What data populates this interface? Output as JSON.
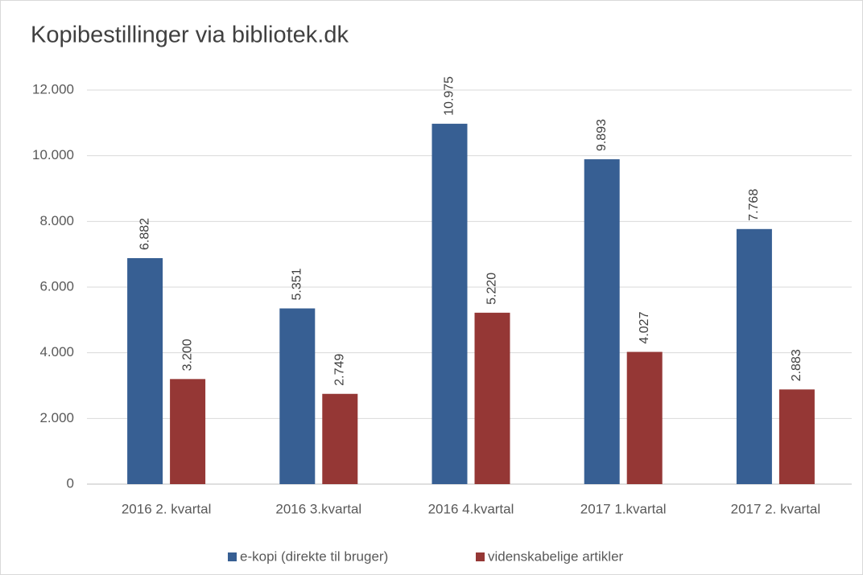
{
  "chart_data": {
    "type": "bar",
    "title": "Kopibestillinger via bibliotek.dk",
    "categories": [
      "2016 2. kvartal",
      "2016 3.kvartal",
      "2016 4.kvartal",
      "2017 1.kvartal",
      "2017 2. kvartal"
    ],
    "series": [
      {
        "name": "e-kopi (direkte til bruger)",
        "color": "#375f93",
        "values": [
          6882,
          5351,
          10975,
          9893,
          7768
        ],
        "value_labels": [
          "6.882",
          "5.351",
          "10.975",
          "9.893",
          "7.768"
        ]
      },
      {
        "name": "videnskabelige artikler",
        "color": "#953735",
        "values": [
          3200,
          2749,
          5220,
          4027,
          2883
        ],
        "value_labels": [
          "3.200",
          "2.749",
          "5.220",
          "4.027",
          "2.883"
        ]
      }
    ],
    "ylim": [
      0,
      12000
    ],
    "yticks": [
      0,
      {
        "value": 2000,
        "label": "2.000"
      },
      {
        "value": 4000,
        "label": "4.000"
      },
      {
        "value": 6000,
        "label": "6.000"
      },
      {
        "value": 8000,
        "label": "8.000"
      },
      {
        "value": 10000,
        "label": "10.000"
      },
      {
        "value": 12000,
        "label": "12.000"
      }
    ],
    "grid": true,
    "legend": "bottom"
  }
}
